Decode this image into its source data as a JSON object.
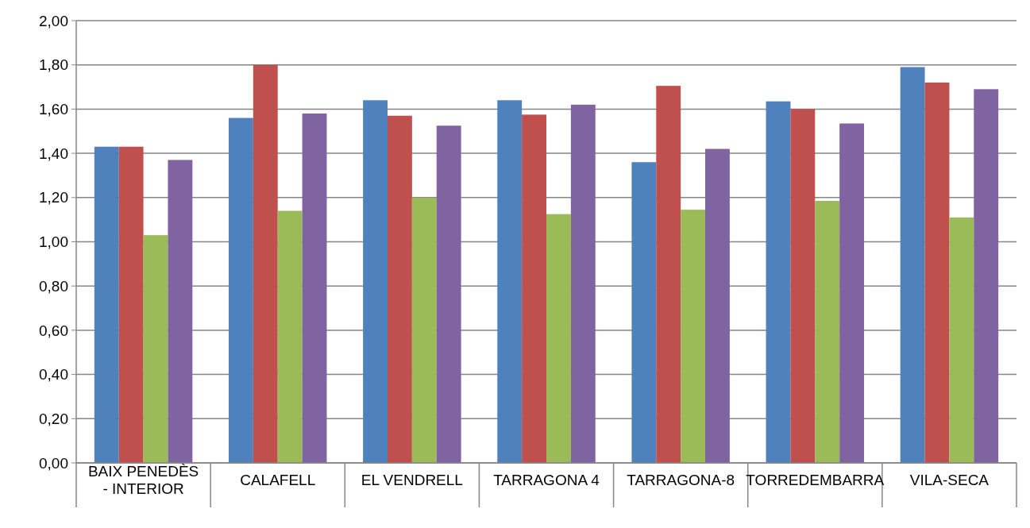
{
  "chart_data": {
    "type": "bar",
    "categories": [
      "BAIX PENEDÈS - INTERIOR",
      "CALAFELL",
      "EL VENDRELL",
      "TARRAGONA 4",
      "TARRAGONA-8",
      "TORREDEMBARRA",
      "VILA-SECA"
    ],
    "series": [
      {
        "color": "#4f81bd",
        "values": [
          1.43,
          1.56,
          1.64,
          1.64,
          1.36,
          1.635,
          1.79
        ]
      },
      {
        "color": "#c0504d",
        "values": [
          1.43,
          1.8,
          1.57,
          1.575,
          1.705,
          1.6,
          1.72
        ]
      },
      {
        "color": "#9bbb59",
        "values": [
          1.03,
          1.14,
          1.2,
          1.125,
          1.145,
          1.185,
          1.11
        ]
      },
      {
        "color": "#8064a2",
        "values": [
          1.37,
          1.58,
          1.525,
          1.62,
          1.42,
          1.535,
          1.69
        ]
      }
    ],
    "ylim": [
      0,
      2
    ],
    "yticks": [
      {
        "value": 0,
        "label": "0,00"
      },
      {
        "value": 0.2,
        "label": "0,20"
      },
      {
        "value": 0.4,
        "label": "0,40"
      },
      {
        "value": 0.6,
        "label": "0,60"
      },
      {
        "value": 0.8,
        "label": "0,80"
      },
      {
        "value": 1,
        "label": "1,00"
      },
      {
        "value": 1.2,
        "label": "1,20"
      },
      {
        "value": 1.4,
        "label": "1,40"
      },
      {
        "value": 1.6,
        "label": "1,60"
      },
      {
        "value": 1.8,
        "label": "1,80"
      },
      {
        "value": 2,
        "label": "2,00"
      }
    ],
    "grid": "y"
  }
}
